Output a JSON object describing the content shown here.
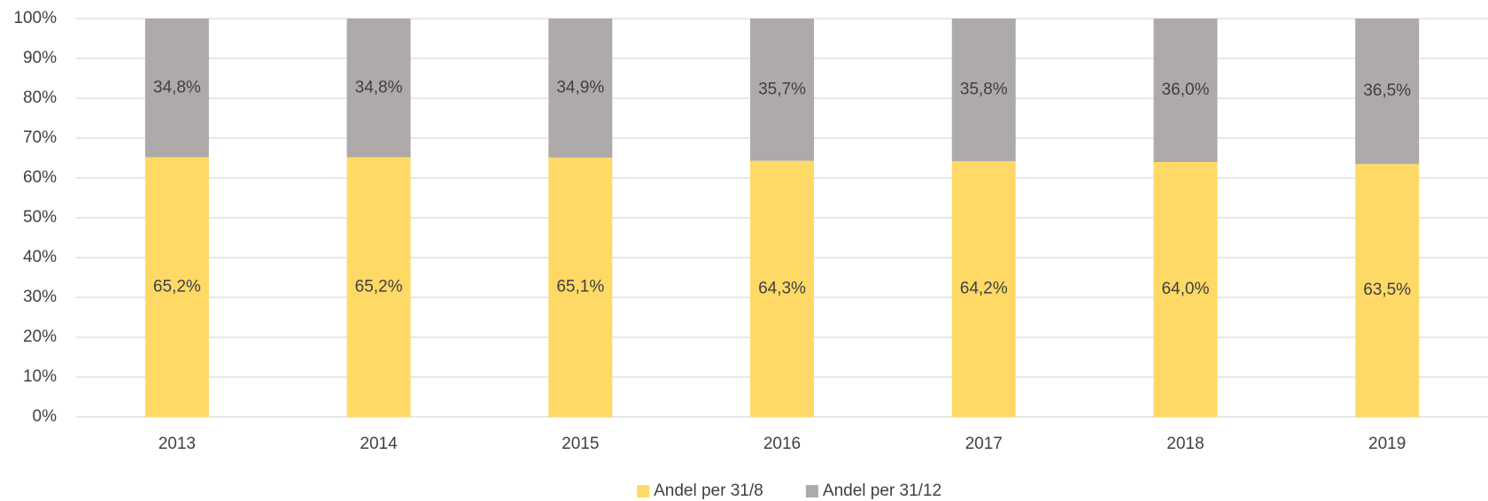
{
  "chart_data": {
    "type": "stacked_bar",
    "categories": [
      "2013",
      "2014",
      "2015",
      "2016",
      "2017",
      "2018",
      "2019"
    ],
    "series": [
      {
        "name": "Andel per 31/8",
        "color": "#FFD966",
        "values": [
          65.2,
          65.2,
          65.1,
          64.3,
          64.2,
          64.0,
          63.5
        ],
        "value_labels": [
          "65,2%",
          "65,2%",
          "65,1%",
          "64,3%",
          "64,2%",
          "64,0%",
          "63,5%"
        ]
      },
      {
        "name": "Andel per 31/12",
        "color": "#AEAAAA",
        "values": [
          34.8,
          34.8,
          34.9,
          35.7,
          35.8,
          36.0,
          36.5
        ],
        "value_labels": [
          "34,8%",
          "34,8%",
          "34,9%",
          "35,7%",
          "35,8%",
          "36,0%",
          "36,5%"
        ]
      }
    ],
    "ylim": [
      0,
      100
    ],
    "yticks": [
      {
        "value": 0,
        "label": "0%"
      },
      {
        "value": 10,
        "label": "10%"
      },
      {
        "value": 20,
        "label": "20%"
      },
      {
        "value": 30,
        "label": "30%"
      },
      {
        "value": 40,
        "label": "40%"
      },
      {
        "value": 50,
        "label": "50%"
      },
      {
        "value": 60,
        "label": "60%"
      },
      {
        "value": 70,
        "label": "70%"
      },
      {
        "value": 80,
        "label": "80%"
      },
      {
        "value": 90,
        "label": "90%"
      },
      {
        "value": 100,
        "label": "100%"
      }
    ],
    "grid": true,
    "legend": "bottom"
  }
}
